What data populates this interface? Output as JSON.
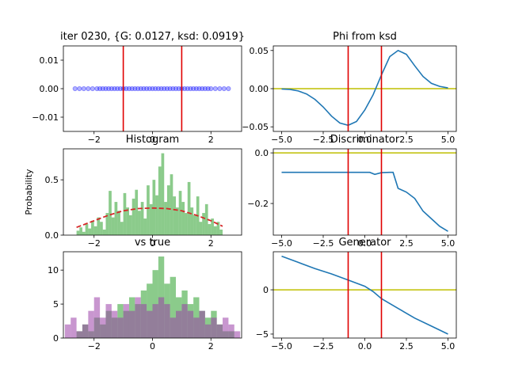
{
  "chart_data": [
    {
      "type": "scatter",
      "title": "iter 0230, {G: 0.0127, ksd: 0.0919}",
      "color": "#0000ff",
      "x": [
        -2.65,
        -2.5,
        -2.35,
        -2.2,
        -2.05,
        -1.9,
        -1.8,
        -1.7,
        -1.6,
        -1.5,
        -1.4,
        -1.3,
        -1.2,
        -1.1,
        -1.0,
        -0.9,
        -0.8,
        -0.7,
        -0.6,
        -0.5,
        -0.4,
        -0.3,
        -0.2,
        -0.1,
        0.0,
        0.1,
        0.2,
        0.3,
        0.4,
        0.5,
        0.6,
        0.7,
        0.8,
        0.9,
        1.0,
        1.1,
        1.2,
        1.3,
        1.4,
        1.5,
        1.6,
        1.7,
        1.8,
        1.9,
        2.0,
        2.15,
        2.3,
        2.45,
        2.6
      ],
      "values": [
        0,
        0,
        0,
        0,
        0,
        0,
        0,
        0,
        0,
        0,
        0,
        0,
        0,
        0,
        0,
        0,
        0,
        0,
        0,
        0,
        0,
        0,
        0,
        0,
        0,
        0,
        0,
        0,
        0,
        0,
        0,
        0,
        0,
        0,
        0,
        0,
        0,
        0,
        0,
        0,
        0,
        0,
        0,
        0,
        0,
        0,
        0,
        0,
        0
      ],
      "xlim": [
        -3.05,
        3.05
      ],
      "xticks": [
        {
          "value": -2,
          "label": "−2"
        },
        0,
        2
      ],
      "ylim": [
        -0.015,
        0.015
      ],
      "yticks": [
        {
          "value": -0.01,
          "label": "−0.01"
        },
        {
          "value": 0,
          "label": "0.00"
        },
        0.01
      ],
      "vlines": [
        -1,
        1
      ],
      "vline_color": "#e00000"
    },
    {
      "type": "line",
      "title": "Phi from ksd",
      "color": "#1f77b4",
      "x": [
        -5,
        -4.5,
        -4,
        -3.5,
        -3,
        -2.5,
        -2,
        -1.5,
        -1,
        -0.5,
        0,
        0.5,
        1,
        1.5,
        2,
        2.5,
        3,
        3.5,
        4,
        4.5,
        5
      ],
      "values": [
        -0.0005,
        -0.001,
        -0.003,
        -0.007,
        -0.014,
        -0.024,
        -0.036,
        -0.045,
        -0.048,
        -0.043,
        -0.028,
        -0.008,
        0.018,
        0.042,
        0.05,
        0.045,
        0.03,
        0.016,
        0.007,
        0.003,
        0.001
      ],
      "xlim": [
        -5.5,
        5.5
      ],
      "xticks": [
        {
          "value": -5,
          "label": "−5.0"
        },
        {
          "value": -2.5,
          "label": "−2.5"
        },
        {
          "value": 0,
          "label": "0.0"
        },
        2.5,
        {
          "value": 5,
          "label": "5.0"
        }
      ],
      "ylim": [
        -0.056,
        0.056
      ],
      "yticks": [
        {
          "value": -0.05,
          "label": "−0.05"
        },
        {
          "value": 0,
          "label": "0.00"
        },
        0.05
      ],
      "vlines": [
        -1,
        1
      ],
      "vline_color": "#e00000",
      "hline": 0,
      "hline_color": "#bfbf00"
    },
    {
      "type": "histogram",
      "title": "Histogram",
      "ylabel": "Probability",
      "color": "#2ca02c",
      "bins": [
        -2.6,
        -2.5,
        -2.4,
        -2.3,
        -2.2,
        -2.1,
        -2.0,
        -1.9,
        -1.8,
        -1.7,
        -1.6,
        -1.5,
        -1.4,
        -1.3,
        -1.2,
        -1.1,
        -1.0,
        -0.9,
        -0.8,
        -0.7,
        -0.6,
        -0.5,
        -0.4,
        -0.3,
        -0.2,
        -0.1,
        0.0,
        0.1,
        0.2,
        0.3,
        0.4,
        0.5,
        0.6,
        0.7,
        0.8,
        0.9,
        1.0,
        1.1,
        1.2,
        1.3,
        1.4,
        1.5,
        1.6,
        1.7,
        1.8,
        1.9,
        2.0,
        2.1,
        2.2,
        2.3,
        2.4
      ],
      "series": [
        {
          "color": "#2ca02c",
          "values": [
            0.04,
            0.07,
            0.03,
            0.1,
            0.06,
            0.13,
            0.08,
            0.16,
            0.12,
            0.05,
            0.2,
            0.4,
            0.16,
            0.3,
            0.22,
            0.12,
            0.38,
            0.25,
            0.18,
            0.33,
            0.41,
            0.22,
            0.3,
            0.15,
            0.45,
            0.28,
            0.5,
            0.36,
            0.62,
            0.74,
            0.3,
            0.45,
            0.55,
            0.35,
            0.25,
            0.4,
            0.3,
            0.2,
            0.48,
            0.25,
            0.18,
            0.35,
            0.12,
            0.2,
            0.28,
            0.1,
            0.15,
            0.08,
            0.12,
            0.05
          ]
        }
      ],
      "line": {
        "color": "#d62728",
        "dashed": true,
        "x": [
          -2.6,
          -2,
          -1.5,
          -1,
          -0.5,
          0,
          0.5,
          1,
          1.5,
          2,
          2.4
        ],
        "values": [
          0.07,
          0.13,
          0.18,
          0.22,
          0.24,
          0.245,
          0.24,
          0.22,
          0.18,
          0.13,
          0.08
        ]
      },
      "xlim": [
        -3.05,
        3.05
      ],
      "xticks": [
        {
          "value": -2,
          "label": "−2"
        },
        0,
        2
      ],
      "ylim": [
        0,
        0.78
      ],
      "yticks": [
        {
          "value": 0,
          "label": "0.0"
        },
        0.5
      ]
    },
    {
      "type": "line",
      "title": "Discriminator",
      "color": "#1f77b4",
      "x": [
        -5,
        -4,
        -3,
        -2,
        -1,
        0,
        0.3,
        0.6,
        1,
        1.5,
        1.7,
        2,
        2.5,
        3,
        3.5,
        4,
        4.5,
        5
      ],
      "values": [
        -0.077,
        -0.077,
        -0.077,
        -0.077,
        -0.077,
        -0.077,
        -0.077,
        -0.085,
        -0.078,
        -0.077,
        -0.077,
        -0.14,
        -0.155,
        -0.18,
        -0.23,
        -0.26,
        -0.29,
        -0.31
      ],
      "xlim": [
        -5.5,
        5.5
      ],
      "xticks": [
        {
          "value": -5,
          "label": "−5.0"
        },
        {
          "value": -2.5,
          "label": "−2.5"
        },
        {
          "value": 0,
          "label": "0.0"
        },
        2.5,
        {
          "value": 5,
          "label": "5.0"
        }
      ],
      "ylim": [
        -0.325,
        0.016
      ],
      "yticks": [
        {
          "value": -0.2,
          "label": "−0.2"
        },
        {
          "value": 0,
          "label": "0.0"
        }
      ],
      "vlines": [
        -1,
        1
      ],
      "vline_color": "#e00000",
      "hline": 0,
      "hline_color": "#bfbf00"
    },
    {
      "type": "histogram",
      "title": "vs true",
      "bins": [
        -3.0,
        -2.8,
        -2.6,
        -2.4,
        -2.2,
        -2.0,
        -1.8,
        -1.6,
        -1.4,
        -1.2,
        -1.0,
        -0.8,
        -0.6,
        -0.4,
        -0.2,
        0.0,
        0.2,
        0.4,
        0.6,
        0.8,
        1.0,
        1.2,
        1.4,
        1.6,
        1.8,
        2.0,
        2.2,
        2.4,
        2.6,
        2.8,
        3.0
      ],
      "series": [
        {
          "color": "#2ca02c",
          "values": [
            0,
            0,
            1,
            2,
            1,
            3,
            2,
            4,
            3,
            5,
            4,
            6,
            5,
            7,
            8,
            10,
            12,
            8,
            9,
            6,
            7,
            5,
            6,
            4,
            3,
            4,
            2,
            1,
            1,
            0
          ]
        },
        {
          "color": "#9b3fa8",
          "values": [
            2,
            3,
            1,
            2,
            4,
            6,
            3,
            5,
            4,
            3,
            5,
            4,
            6,
            5,
            4,
            5,
            6,
            5,
            3,
            4,
            5,
            4,
            3,
            4,
            2,
            3,
            2,
            3,
            2,
            1
          ]
        }
      ],
      "xlim": [
        -3.05,
        3.05
      ],
      "xticks": [
        {
          "value": -2,
          "label": "−2"
        },
        0,
        2
      ],
      "ylim": [
        0,
        12.7
      ],
      "yticks": [
        0,
        5,
        10
      ]
    },
    {
      "type": "line",
      "title": "Generator",
      "color": "#1f77b4",
      "x": [
        -5,
        -4,
        -3,
        -2,
        -1,
        0,
        0.5,
        1,
        2,
        3,
        4,
        5
      ],
      "values": [
        3.8,
        3.1,
        2.4,
        1.8,
        1.1,
        0.4,
        -0.2,
        -1.0,
        -2.1,
        -3.2,
        -4.1,
        -5.0
      ],
      "xlim": [
        -5.5,
        5.5
      ],
      "xticks": [
        {
          "value": -5,
          "label": "−5.0"
        },
        {
          "value": -2.5,
          "label": "−2.5"
        },
        {
          "value": 0,
          "label": "0.0"
        },
        2.5,
        {
          "value": 5,
          "label": "5.0"
        }
      ],
      "ylim": [
        -5.45,
        4.3
      ],
      "yticks": [
        {
          "value": -5,
          "label": "−5"
        },
        0
      ],
      "vlines": [
        -1,
        1
      ],
      "vline_color": "#e00000",
      "hline": 0,
      "hline_color": "#bfbf00"
    }
  ]
}
